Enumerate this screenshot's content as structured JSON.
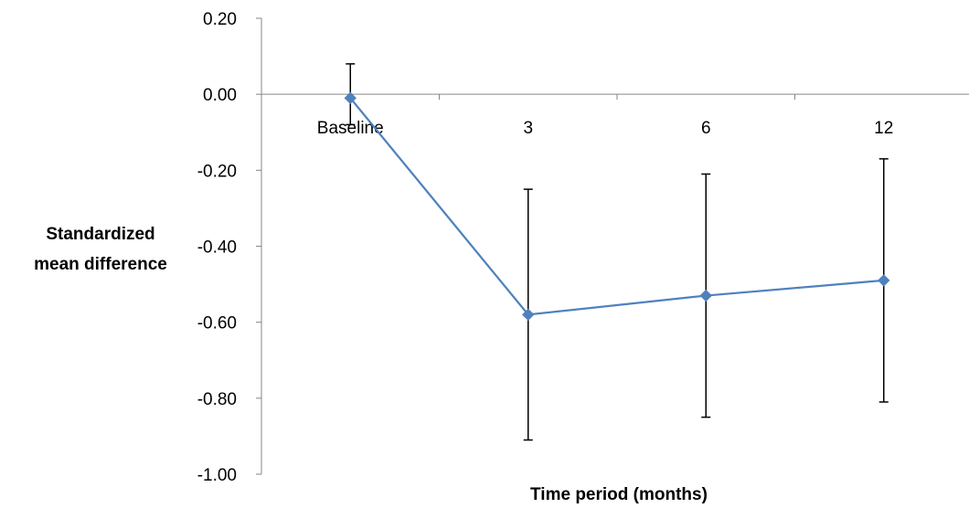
{
  "chart_data": {
    "type": "line",
    "title": "",
    "xlabel": "Time period (months)",
    "ylabel_lines": [
      "Standardized",
      "mean difference"
    ],
    "categories": [
      "Baseline",
      "3",
      "6",
      "12"
    ],
    "series": [
      {
        "values": [
          -0.01,
          -0.58,
          -0.53,
          -0.49
        ],
        "error_upper": [
          0.08,
          -0.25,
          -0.21,
          -0.17
        ],
        "error_lower": [
          -0.08,
          -0.91,
          -0.85,
          -0.81
        ],
        "color": "#4f81bd",
        "marker": "diamond"
      }
    ],
    "ylim": [
      -1.0,
      0.2
    ],
    "yticks": [
      "0.20",
      "0.00",
      "-0.20",
      "-0.40",
      "-0.60",
      "-0.80",
      "-1.00"
    ],
    "ytick_values": [
      0.2,
      0.0,
      -0.2,
      -0.4,
      -0.6,
      -0.8,
      -1.0
    ],
    "x_axis_crosses_at": 0,
    "grid": false,
    "legend": "none"
  }
}
